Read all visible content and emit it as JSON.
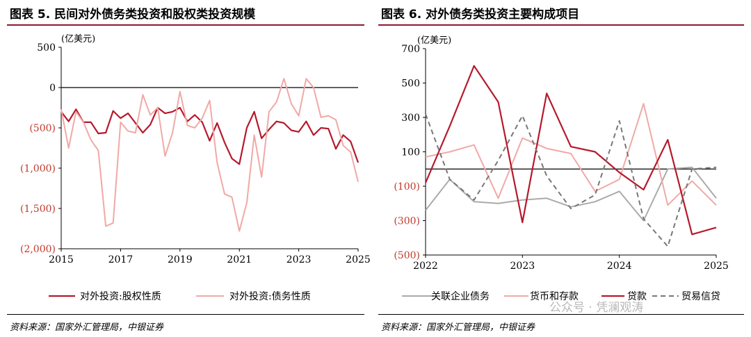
{
  "watermark": "公众号 · 凭澜观涛",
  "charts": [
    {
      "title": "图表 5. 民间对外债务类投资和股权类投资规模",
      "source": "资料来源：国家外汇管理局，中银证券",
      "unit_label": "(亿美元)",
      "chart_data": {
        "type": "line",
        "ylim": [
          -2000,
          500
        ],
        "yticks": [
          500,
          0,
          -500,
          -1000,
          -1500,
          -2000
        ],
        "ytick_labels": [
          "500",
          "0",
          "(500)",
          "(1,000)",
          "(1,500)",
          "(2,000)"
        ],
        "xlim": [
          2015.0,
          2025.0
        ],
        "xticks": [
          2015,
          2017,
          2019,
          2021,
          2023,
          2025
        ],
        "xtick_labels": [
          "2015",
          "2017",
          "2019",
          "2021",
          "2023",
          "2025"
        ],
        "zero_line": true,
        "legend_position": "bottom",
        "series": [
          {
            "name": "对外投资:股权性质",
            "color": "#b5192c",
            "x": [
              2015.0,
              2015.25,
              2015.5,
              2015.75,
              2016.0,
              2016.25,
              2016.5,
              2016.75,
              2017.0,
              2017.25,
              2017.5,
              2017.75,
              2018.0,
              2018.25,
              2018.5,
              2018.75,
              2019.0,
              2019.25,
              2019.5,
              2019.75,
              2020.0,
              2020.25,
              2020.5,
              2020.75,
              2021.0,
              2021.25,
              2021.5,
              2021.75,
              2022.0,
              2022.25,
              2022.5,
              2022.75,
              2023.0,
              2023.25,
              2023.5,
              2023.75,
              2024.0,
              2024.25,
              2024.5,
              2024.75,
              2025.0
            ],
            "y": [
              -300,
              -420,
              -270,
              -430,
              -430,
              -570,
              -560,
              -290,
              -380,
              -320,
              -440,
              -560,
              -460,
              -250,
              -320,
              -300,
              -250,
              -420,
              -340,
              -430,
              -660,
              -440,
              -680,
              -880,
              -950,
              -500,
              -300,
              -630,
              -520,
              -420,
              -440,
              -530,
              -550,
              -420,
              -590,
              -500,
              -510,
              -760,
              -590,
              -670,
              -930
            ]
          },
          {
            "name": "对外投资:债务性质",
            "color": "#f0a9a6",
            "x": [
              2015.0,
              2015.25,
              2015.5,
              2015.75,
              2016.0,
              2016.25,
              2016.5,
              2016.75,
              2017.0,
              2017.25,
              2017.5,
              2017.75,
              2018.0,
              2018.25,
              2018.5,
              2018.75,
              2019.0,
              2019.25,
              2019.5,
              2019.75,
              2020.0,
              2020.25,
              2020.5,
              2020.75,
              2021.0,
              2021.25,
              2021.5,
              2021.75,
              2022.0,
              2022.25,
              2022.5,
              2022.75,
              2023.0,
              2023.25,
              2023.5,
              2023.75,
              2024.0,
              2024.25,
              2024.5,
              2024.75,
              2025.0
            ],
            "y": [
              -270,
              -750,
              -300,
              -430,
              -650,
              -780,
              -1720,
              -1680,
              -430,
              -540,
              -560,
              -90,
              -340,
              -250,
              -850,
              -560,
              -50,
              -470,
              -500,
              -380,
              -160,
              -930,
              -1320,
              -1360,
              -1780,
              -1430,
              -590,
              -1110,
              -300,
              -180,
              110,
              -200,
              -350,
              110,
              0,
              -370,
              -350,
              -400,
              -720,
              -800,
              -1170
            ]
          }
        ]
      }
    },
    {
      "title": "图表 6. 对外债务类投资主要构成项目",
      "source": "资料来源：国家外汇管理局，中银证券",
      "unit_label": "(亿美元)",
      "chart_data": {
        "type": "line",
        "ylim": [
          -500,
          700
        ],
        "yticks": [
          700,
          500,
          300,
          100,
          -100,
          -300,
          -500
        ],
        "ytick_labels": [
          "700",
          "500",
          "300",
          "100",
          "(100)",
          "(300)",
          "(500)"
        ],
        "xlim": [
          2022.0,
          2025.0
        ],
        "xticks": [
          2022,
          2023,
          2024,
          2025
        ],
        "xtick_labels": [
          "2022",
          "2023",
          "2024",
          "2025"
        ],
        "zero_line": true,
        "legend_position": "bottom",
        "series": [
          {
            "name": "关联企业债务",
            "color": "#aaaaaa",
            "dash": false,
            "x": [
              2022.0,
              2022.25,
              2022.5,
              2022.75,
              2023.0,
              2023.25,
              2023.5,
              2023.75,
              2024.0,
              2024.25,
              2024.5,
              2024.75,
              2025.0
            ],
            "y": [
              -240,
              -60,
              -190,
              -200,
              -180,
              -170,
              -220,
              -190,
              -130,
              -300,
              0,
              10,
              -170
            ]
          },
          {
            "name": "货币和存款",
            "color": "#f0a9a6",
            "dash": false,
            "x": [
              2022.0,
              2022.25,
              2022.5,
              2022.75,
              2023.0,
              2023.25,
              2023.5,
              2023.75,
              2024.0,
              2024.25,
              2024.5,
              2024.75,
              2025.0
            ],
            "y": [
              70,
              100,
              140,
              -170,
              180,
              120,
              90,
              -130,
              -60,
              380,
              -210,
              -70,
              -210
            ]
          },
          {
            "name": "贷款",
            "color": "#b5192c",
            "dash": false,
            "x": [
              2022.0,
              2022.25,
              2022.5,
              2022.75,
              2023.0,
              2023.25,
              2023.5,
              2023.75,
              2024.0,
              2024.25,
              2024.5,
              2024.75,
              2025.0
            ],
            "y": [
              -80,
              250,
              600,
              390,
              -310,
              440,
              130,
              100,
              -20,
              -120,
              170,
              -380,
              -340
            ]
          },
          {
            "name": "贸易信贷",
            "color": "#777777",
            "dash": true,
            "x": [
              2022.0,
              2022.25,
              2022.5,
              2022.75,
              2023.0,
              2023.25,
              2023.5,
              2023.75,
              2024.0,
              2024.25,
              2024.5,
              2024.75,
              2025.0
            ],
            "y": [
              320,
              -60,
              -180,
              50,
              310,
              -40,
              -230,
              -150,
              280,
              -290,
              -450,
              0,
              10
            ]
          }
        ]
      }
    }
  ]
}
